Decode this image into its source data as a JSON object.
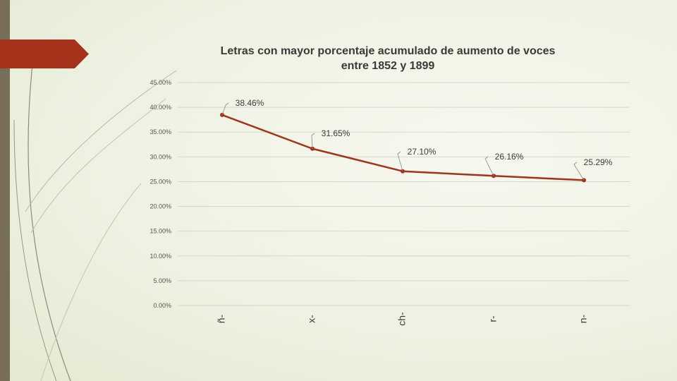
{
  "chart_data": {
    "type": "line",
    "title_line1": "Letras con mayor porcentaje acumulado de aumento de voces",
    "title_line2": "entre 1852 y 1899",
    "categories": [
      "ñ-",
      "x-",
      "ch-",
      "r-",
      "n-"
    ],
    "values": [
      38.46,
      31.65,
      27.1,
      26.16,
      25.29
    ],
    "data_labels": [
      "38.46%",
      "31.65%",
      "27.10%",
      "26.16%",
      "25.29%"
    ],
    "y_ticks": [
      "0.00%",
      "5.00%",
      "10.00%",
      "15.00%",
      "20.00%",
      "25.00%",
      "30.00%",
      "35.00%",
      "40.00%",
      "45.00%"
    ],
    "ylim": [
      0,
      45
    ],
    "xlabel": "",
    "ylabel": "",
    "grid": true,
    "colors": {
      "line": "#a5321a",
      "grid": "#d4d8c6"
    }
  }
}
